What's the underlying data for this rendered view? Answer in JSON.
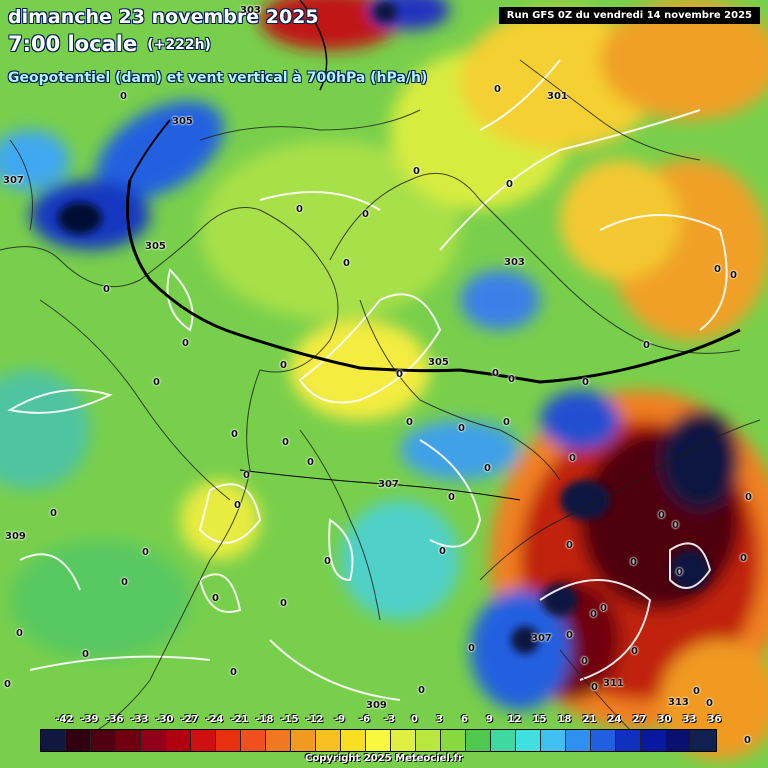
{
  "header": {
    "date_line": "dimanche 23 novembre 2025",
    "time_line": "7:00 locale",
    "offset": "(+222h)",
    "field_line": "Geopotentiel (dam) et vent vertical à 700hPa (hPa/h)",
    "run_info": "Run GFS 0Z du vendredi 14 novembre 2025"
  },
  "geopotential_labels": [
    "303",
    "305",
    "307",
    "305",
    "307",
    "309",
    "309",
    "313",
    "311",
    "301",
    "303",
    "305",
    "307"
  ],
  "vertical_wind_labels": [
    "0"
  ],
  "color_scale": {
    "ticks": [
      "-42",
      "-39",
      "-36",
      "-33",
      "-30",
      "-27",
      "-24",
      "-21",
      "-18",
      "-15",
      "-12",
      "-9",
      "-6",
      "-3",
      "0",
      "3",
      "6",
      "9",
      "12",
      "15",
      "18",
      "21",
      "24",
      "27",
      "30",
      "33",
      "36"
    ],
    "colors": [
      "#101840",
      "#300010",
      "#500010",
      "#700010",
      "#900018",
      "#b00010",
      "#d01010",
      "#e83010",
      "#f05020",
      "#f07820",
      "#f09a20",
      "#f8c020",
      "#f8e020",
      "#f8f840",
      "#e0f040",
      "#b8e840",
      "#88d840",
      "#50c850",
      "#40d8a0",
      "#40e0e0",
      "#40c0f0",
      "#3090f0",
      "#2060e0",
      "#1030c0",
      "#0818a0",
      "#081070",
      "#102050"
    ],
    "accent": "#ffffff"
  },
  "footer": {
    "copyright": "Copyright 2025 Meteociel.fr"
  }
}
